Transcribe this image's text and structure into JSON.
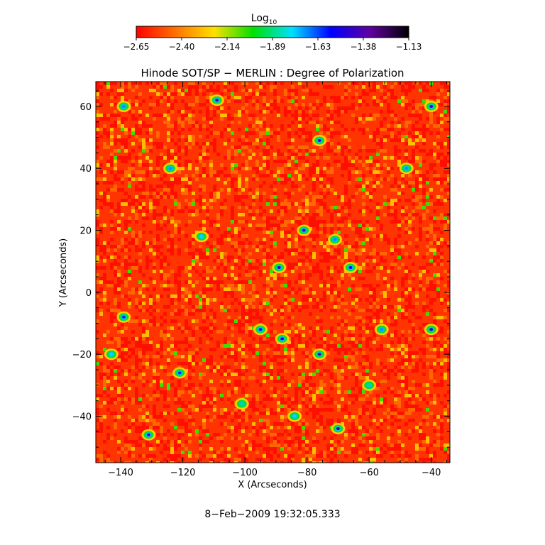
{
  "chart_data": {
    "type": "heatmap",
    "title": "Hinode SOT/SP − MERLIN : Degree of Polarization",
    "xlabel": "X (Arcseconds)",
    "ylabel": "Y (Arcseconds)",
    "xlim": [
      -148,
      -34
    ],
    "ylim": [
      -55,
      68
    ],
    "xticks": [
      -140,
      -120,
      -100,
      -80,
      -60,
      -40
    ],
    "yticks": [
      -40,
      -20,
      0,
      20,
      40,
      60
    ],
    "colorbar": {
      "label_base": "Log",
      "label_sub": "10",
      "range": [
        -2.65,
        -1.13
      ],
      "tick_labels": [
        "−2.65",
        "−2.40",
        "−2.14",
        "−1.89",
        "−1.63",
        "−1.38",
        "−1.13"
      ],
      "colormap": [
        "#ff0000",
        "#ff7000",
        "#ffe000",
        "#00e000",
        "#00e0ff",
        "#0000ff",
        "#6000a0",
        "#000000"
      ]
    },
    "background_level": -2.55,
    "strong_patches": [
      {
        "x": -109,
        "y": 62,
        "value": -1.4
      },
      {
        "x": -139,
        "y": 60,
        "value": -1.7
      },
      {
        "x": -40,
        "y": 60,
        "value": -1.4
      },
      {
        "x": -76,
        "y": 49,
        "value": -1.4
      },
      {
        "x": -124,
        "y": 40,
        "value": -1.7
      },
      {
        "x": -48,
        "y": 40,
        "value": -1.7
      },
      {
        "x": -81,
        "y": 20,
        "value": -1.4
      },
      {
        "x": -114,
        "y": 18,
        "value": -1.8
      },
      {
        "x": -71,
        "y": 17,
        "value": -1.7
      },
      {
        "x": -89,
        "y": 8,
        "value": -1.4
      },
      {
        "x": -66,
        "y": 8,
        "value": -1.5
      },
      {
        "x": -139,
        "y": -8,
        "value": -1.6
      },
      {
        "x": -95,
        "y": -12,
        "value": -1.5
      },
      {
        "x": -40,
        "y": -12,
        "value": -1.3
      },
      {
        "x": -56,
        "y": -12,
        "value": -1.7
      },
      {
        "x": -88,
        "y": -15,
        "value": -1.5
      },
      {
        "x": -76,
        "y": -20,
        "value": -1.3
      },
      {
        "x": -121,
        "y": -26,
        "value": -1.6
      },
      {
        "x": -143,
        "y": -20,
        "value": -1.8
      },
      {
        "x": -131,
        "y": -46,
        "value": -1.4
      },
      {
        "x": -70,
        "y": -44,
        "value": -1.3
      },
      {
        "x": -84,
        "y": -40,
        "value": -1.8
      },
      {
        "x": -60,
        "y": -30,
        "value": -1.9
      },
      {
        "x": -101,
        "y": -36,
        "value": -1.9
      }
    ]
  },
  "timestamp": "8−Feb−2009 19:32:05.333"
}
